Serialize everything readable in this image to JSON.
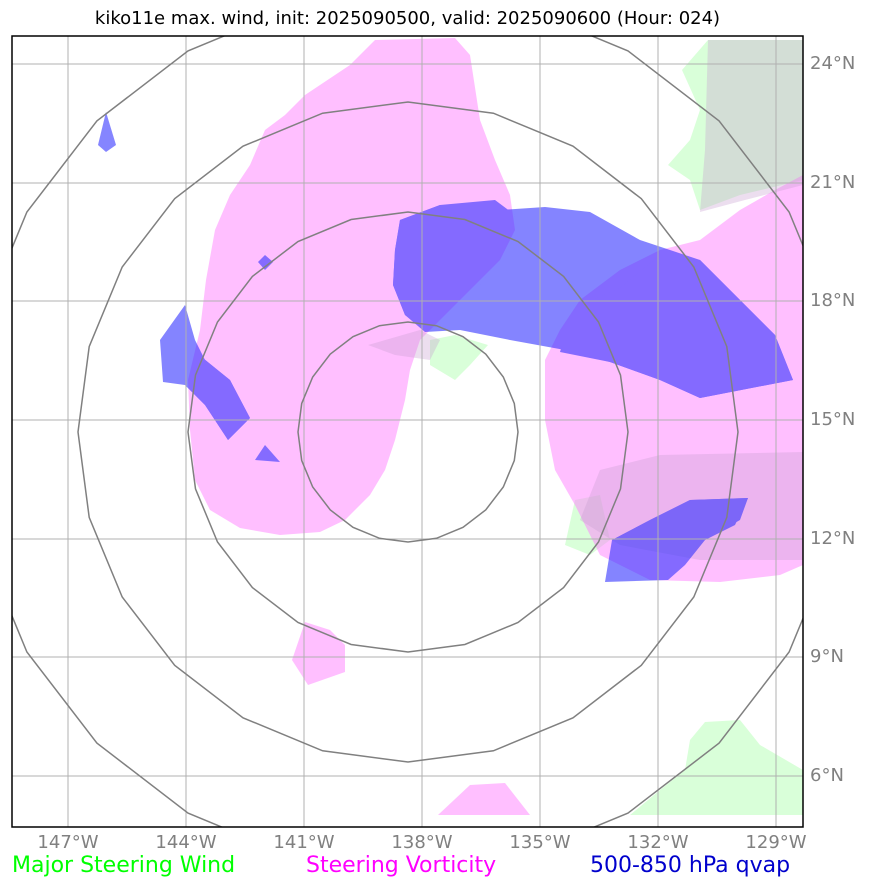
{
  "title": "kiko11e max. wind, init: 2025090500, valid: 2025090600 (Hour: 024)",
  "lat_labels": [
    "24°N",
    "21°N",
    "18°N",
    "15°N",
    "12°N",
    "9°N",
    "6°N"
  ],
  "lon_labels": [
    "147°W",
    "144°W",
    "141°W",
    "138°W",
    "135°W",
    "132°W",
    "129°W"
  ],
  "legend": [
    {
      "label": "Major Steering Wind",
      "color": "#00ff00"
    },
    {
      "label": "Steering Vorticity",
      "color": "#ff00ff"
    },
    {
      "label": "500-850 hPa qvap",
      "color": "#0000cc"
    }
  ],
  "colors": {
    "wind_fill": "#ccffcc",
    "vorticity_fill": "#ff80ff",
    "qvap_fill": "#0000ff",
    "range_rings": "#808080",
    "gridlines": "#b0b0b0"
  }
}
